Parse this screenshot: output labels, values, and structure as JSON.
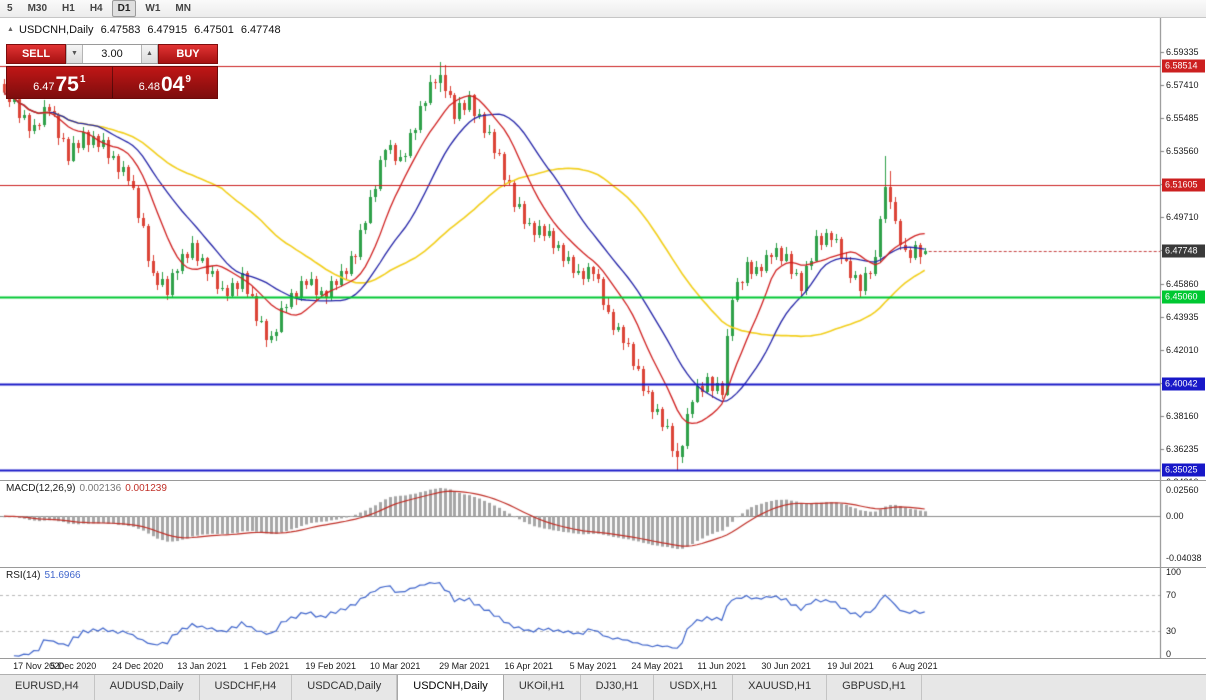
{
  "toolbar": {
    "timeframes": [
      {
        "label": "5",
        "active": false
      },
      {
        "label": "M30",
        "active": false
      },
      {
        "label": "H1",
        "active": false
      },
      {
        "label": "H4",
        "active": false
      },
      {
        "label": "D1",
        "active": true
      },
      {
        "label": "W1",
        "active": false
      },
      {
        "label": "MN",
        "active": false
      }
    ]
  },
  "header": {
    "toggle_icon": "▲",
    "symbol": "USDCNH,Daily",
    "open": "6.47583",
    "high": "6.47915",
    "low": "6.47501",
    "close": "6.47748"
  },
  "one_click": {
    "sell_label": "SELL",
    "buy_label": "BUY",
    "volume": "3.00",
    "down_icon": "▼",
    "up_icon": "▲",
    "sell_price": {
      "prefix": "6.47",
      "big": "75",
      "sup": "1"
    },
    "buy_price": {
      "prefix": "6.48",
      "big": "04",
      "sup": "9"
    }
  },
  "chart_data": {
    "type": "candlestick",
    "symbol": "USDCNH",
    "period": "Daily",
    "price_axis": {
      "min": 6.3444,
      "max": 6.613,
      "ticks": [
        "6.59335",
        "6.57410",
        "6.55485",
        "6.53560",
        "6.51635",
        "6.49710",
        "6.47785",
        "6.45860",
        "6.43935",
        "6.42010",
        "6.40085",
        "6.38160",
        "6.36235",
        "6.34310"
      ]
    },
    "levels": [
      {
        "price": 6.58514,
        "label": "6.58514",
        "color": "#cc2020",
        "lw": 1
      },
      {
        "price": 6.51605,
        "label": "6.51605",
        "color": "#cc2020",
        "lw": 1
      },
      {
        "price": 6.4506,
        "label": "6.45060",
        "color": "#00c832",
        "lw": 2
      },
      {
        "price": 6.40042,
        "label": "6.40042",
        "color": "#1818c8",
        "lw": 2
      },
      {
        "price": 6.35025,
        "label": "6.35025",
        "color": "#1818c8",
        "lw": 2
      }
    ],
    "current_price": {
      "value": 6.47748,
      "label": "6.47748",
      "badge_color": "#3a3a3a"
    },
    "colors": {
      "up": "#2fa14a",
      "down": "#dc4437",
      "ma_fast": "#d02020",
      "ma_mid": "#2424a8",
      "ma_slow": "#f2cf1d",
      "bid_line": "#c84040",
      "axis_border": "#808080",
      "macd_hist": "#a6a6a6",
      "macd_signal": "#c03028",
      "rsi_line": "#4066cc"
    },
    "time_labels": [
      {
        "i": 7,
        "label": "17 Nov 2020"
      },
      {
        "i": 14,
        "label": "5 Dec 2020"
      },
      {
        "i": 27,
        "label": "24 Dec 2020"
      },
      {
        "i": 40,
        "label": "13 Jan 2021"
      },
      {
        "i": 53,
        "label": "1 Feb 2021"
      },
      {
        "i": 66,
        "label": "19 Feb 2021"
      },
      {
        "i": 79,
        "label": "10 Mar 2021"
      },
      {
        "i": 93,
        "label": "29 Mar 2021"
      },
      {
        "i": 106,
        "label": "16 Apr 2021"
      },
      {
        "i": 119,
        "label": "5 May 2021"
      },
      {
        "i": 132,
        "label": "24 May 2021"
      },
      {
        "i": 145,
        "label": "11 Jun 2021"
      },
      {
        "i": 158,
        "label": "30 Jun 2021"
      },
      {
        "i": 171,
        "label": "19 Jul 2021"
      },
      {
        "i": 184,
        "label": "6 Aug 2021"
      }
    ],
    "candles": [
      [
        6.5745,
        6.5775,
        6.5682,
        6.57
      ],
      [
        6.57,
        6.5712,
        6.5614,
        6.564
      ],
      [
        6.564,
        6.57,
        6.563,
        6.566
      ],
      [
        6.566,
        6.5678,
        6.552,
        6.555
      ],
      [
        6.555,
        6.5593,
        6.5538,
        6.5567
      ],
      [
        6.5567,
        6.5577,
        6.5433,
        6.5473
      ],
      [
        6.5473,
        6.554,
        6.5455,
        6.551
      ],
      [
        6.551,
        6.5522,
        6.5481,
        6.5507
      ],
      [
        6.5507,
        6.5653,
        6.5497,
        6.5613
      ],
      [
        6.5613,
        6.5631,
        6.556,
        6.559
      ],
      [
        6.559,
        6.5616,
        6.5553,
        6.5565
      ],
      [
        6.5565,
        6.5575,
        6.539,
        6.543
      ],
      [
        6.543,
        6.546,
        6.5407,
        6.5425
      ],
      [
        6.5425,
        6.5437,
        6.5274,
        6.53
      ],
      [
        6.53,
        6.5443,
        6.529,
        6.5403
      ],
      [
        6.5403,
        6.5421,
        6.5347,
        6.5377
      ],
      [
        6.5377,
        6.5496,
        6.5365,
        6.547
      ],
      [
        6.547,
        6.548,
        6.5353,
        6.5393
      ],
      [
        6.5393,
        6.5475,
        6.5375,
        6.5445
      ],
      [
        6.5445,
        6.5457,
        6.5352,
        6.5378
      ],
      [
        6.5378,
        6.546,
        6.5368,
        6.542
      ],
      [
        6.542,
        6.5438,
        6.5284,
        6.5314
      ],
      [
        6.5314,
        6.5354,
        6.5302,
        6.5328
      ],
      [
        6.5328,
        6.5338,
        6.5192,
        6.5232
      ],
      [
        6.5232,
        6.5296,
        6.5214,
        6.5266
      ],
      [
        6.5266,
        6.5278,
        6.5154,
        6.518
      ],
      [
        6.518,
        6.522,
        6.513,
        6.514
      ],
      [
        6.514,
        6.5158,
        6.494,
        6.497
      ],
      [
        6.497,
        6.4996,
        6.4908,
        6.492
      ],
      [
        6.492,
        6.493,
        6.468,
        6.472
      ],
      [
        6.472,
        6.475,
        6.4632,
        6.465
      ],
      [
        6.465,
        6.4662,
        6.4551,
        6.4577
      ],
      [
        6.4577,
        6.4653,
        6.4567,
        6.4613
      ],
      [
        6.4613,
        6.4631,
        6.449,
        6.452
      ],
      [
        6.452,
        6.4671,
        6.4508,
        6.4645
      ],
      [
        6.4645,
        6.467,
        6.4605,
        6.466
      ],
      [
        6.466,
        6.4787,
        6.4642,
        6.4757
      ],
      [
        6.4757,
        6.4769,
        6.4707,
        6.4733
      ],
      [
        6.4733,
        6.486,
        6.4723,
        6.482
      ],
      [
        6.482,
        6.4838,
        6.4687,
        6.4717
      ],
      [
        6.4717,
        6.4759,
        6.4705,
        6.4733
      ],
      [
        6.4733,
        6.4743,
        6.46,
        6.464
      ],
      [
        6.464,
        6.4687,
        6.4622,
        6.4657
      ],
      [
        6.4657,
        6.4669,
        6.4527,
        6.4553
      ],
      [
        6.4553,
        6.46,
        6.4543,
        6.456
      ],
      [
        6.456,
        6.4578,
        6.4485,
        6.4515
      ],
      [
        6.4515,
        6.4616,
        6.4503,
        6.459
      ],
      [
        6.459,
        6.46,
        6.4515,
        6.4555
      ],
      [
        6.4555,
        6.468,
        6.4537,
        6.465
      ],
      [
        6.465,
        6.4662,
        6.4501,
        6.4527
      ],
      [
        6.4527,
        6.4567,
        6.4503,
        6.4513
      ],
      [
        6.4513,
        6.4531,
        6.434,
        6.437
      ],
      [
        6.437,
        6.4396,
        6.4358,
        6.437
      ],
      [
        6.437,
        6.438,
        6.422,
        6.426
      ],
      [
        6.426,
        6.431,
        6.4242,
        6.428
      ],
      [
        6.428,
        6.4319,
        6.4254,
        6.4307
      ],
      [
        6.4307,
        6.4483,
        6.4297,
        6.4443
      ],
      [
        6.4443,
        6.4468,
        6.4413,
        6.445
      ],
      [
        6.445,
        6.4556,
        6.4438,
        6.453
      ],
      [
        6.453,
        6.454,
        6.446,
        6.45
      ],
      [
        6.45,
        6.463,
        6.4482,
        6.46
      ],
      [
        6.46,
        6.4612,
        6.4554,
        6.458
      ],
      [
        6.458,
        6.4653,
        6.457,
        6.4613
      ],
      [
        6.4613,
        6.4631,
        6.4487,
        6.4517
      ],
      [
        6.4517,
        6.4566,
        6.4505,
        6.454
      ],
      [
        6.454,
        6.455,
        6.4465,
        6.4505
      ],
      [
        6.4505,
        6.463,
        6.4487,
        6.46
      ],
      [
        6.46,
        6.4612,
        6.4549,
        6.4575
      ],
      [
        6.4575,
        6.47,
        6.4565,
        6.466
      ],
      [
        6.466,
        6.4678,
        6.4613,
        6.4643
      ],
      [
        6.4643,
        6.4773,
        6.4631,
        6.4747
      ],
      [
        6.4747,
        6.4757,
        6.47,
        6.474
      ],
      [
        6.474,
        6.493,
        6.4722,
        6.49
      ],
      [
        6.49,
        6.4952,
        6.4874,
        6.494
      ],
      [
        6.494,
        6.513,
        6.493,
        6.509
      ],
      [
        6.509,
        6.5155,
        6.506,
        6.5137
      ],
      [
        6.5137,
        6.5329,
        6.5125,
        6.5303
      ],
      [
        6.5303,
        6.537,
        6.5263,
        6.536
      ],
      [
        6.536,
        6.542,
        6.5342,
        6.539
      ],
      [
        6.539,
        6.5402,
        6.5274,
        6.53
      ],
      [
        6.53,
        6.536,
        6.529,
        6.532
      ],
      [
        6.532,
        6.5348,
        6.529,
        6.533
      ],
      [
        6.533,
        6.5486,
        6.5318,
        6.546
      ],
      [
        6.546,
        6.549,
        6.542,
        6.548
      ],
      [
        6.548,
        6.5647,
        6.5462,
        6.5617
      ],
      [
        6.5617,
        6.5645,
        6.5591,
        6.5633
      ],
      [
        6.5633,
        6.58,
        6.5623,
        6.576
      ],
      [
        6.576,
        6.5778,
        6.572,
        6.575
      ],
      [
        6.575,
        6.5875,
        6.57,
        6.58
      ],
      [
        6.58,
        6.5858,
        6.5667,
        6.5707
      ],
      [
        6.5707,
        6.5737,
        6.5665,
        6.5683
      ],
      [
        6.5683,
        6.5695,
        6.5514,
        6.554
      ],
      [
        6.554,
        6.5673,
        6.553,
        6.5633
      ],
      [
        6.5633,
        6.5651,
        6.5567,
        6.5597
      ],
      [
        6.5597,
        6.5706,
        6.5585,
        6.568
      ],
      [
        6.568,
        6.569,
        6.552,
        6.556
      ],
      [
        6.556,
        6.56,
        6.5542,
        6.557
      ],
      [
        6.557,
        6.5582,
        6.5434,
        6.546
      ],
      [
        6.546,
        6.5507,
        6.545,
        6.5467
      ],
      [
        6.5467,
        6.5485,
        6.5313,
        6.5343
      ],
      [
        6.5343,
        6.5369,
        6.5328,
        6.534
      ],
      [
        6.534,
        6.535,
        6.515,
        6.519
      ],
      [
        6.519,
        6.522,
        6.5152,
        6.517
      ],
      [
        6.517,
        6.5182,
        6.5004,
        6.503
      ],
      [
        6.503,
        6.5087,
        6.502,
        6.5047
      ],
      [
        6.5047,
        6.5065,
        6.4903,
        6.4933
      ],
      [
        6.4933,
        6.4966,
        6.4921,
        6.494
      ],
      [
        6.494,
        6.495,
        6.4827,
        6.4867
      ],
      [
        6.4867,
        6.4953,
        6.4849,
        6.4923
      ],
      [
        6.4923,
        6.4935,
        6.4834,
        6.486
      ],
      [
        6.486,
        6.493,
        6.485,
        6.489
      ],
      [
        6.489,
        6.4908,
        6.476,
        6.479
      ],
      [
        6.479,
        6.4836,
        6.4778,
        6.481
      ],
      [
        6.481,
        6.482,
        6.468,
        6.472
      ],
      [
        6.472,
        6.4773,
        6.4702,
        6.4743
      ],
      [
        6.4743,
        6.4755,
        6.4621,
        6.4647
      ],
      [
        6.4647,
        6.47,
        6.4637,
        6.466
      ],
      [
        6.466,
        6.4678,
        6.458,
        6.461
      ],
      [
        6.461,
        6.4706,
        6.4598,
        6.468
      ],
      [
        6.468,
        6.469,
        6.46,
        6.464
      ],
      [
        6.464,
        6.467,
        6.4592,
        6.461
      ],
      [
        6.461,
        6.4622,
        6.4434,
        6.446
      ],
      [
        6.446,
        6.45,
        6.441,
        6.442
      ],
      [
        6.442,
        6.4438,
        6.4287,
        6.4317
      ],
      [
        6.4317,
        6.4359,
        6.4305,
        6.4333
      ],
      [
        6.4333,
        6.4343,
        6.42,
        6.424
      ],
      [
        6.424,
        6.427,
        6.4215,
        6.4233
      ],
      [
        6.4233,
        6.4245,
        6.4081,
        6.4107
      ],
      [
        6.4107,
        6.4147,
        6.408,
        6.409
      ],
      [
        6.409,
        6.4108,
        6.3933,
        6.3963
      ],
      [
        6.3963,
        6.3989,
        6.3945,
        6.3957
      ],
      [
        6.3957,
        6.3967,
        6.38,
        6.384
      ],
      [
        6.384,
        6.3887,
        6.3822,
        6.3857
      ],
      [
        6.3857,
        6.3869,
        6.3727,
        6.3753
      ],
      [
        6.3753,
        6.38,
        6.3743,
        6.376
      ],
      [
        6.376,
        6.3778,
        6.358,
        6.361
      ],
      [
        6.361,
        6.366,
        6.3505,
        6.358
      ],
      [
        6.358,
        6.365,
        6.354,
        6.364
      ],
      [
        6.364,
        6.386,
        6.3622,
        6.383
      ],
      [
        6.383,
        6.3912,
        6.3804,
        6.39
      ],
      [
        6.39,
        6.4033,
        6.389,
        6.3993
      ],
      [
        6.3993,
        6.4011,
        6.3927,
        6.3957
      ],
      [
        6.3957,
        6.4066,
        6.3945,
        6.404
      ],
      [
        6.404,
        6.405,
        6.392,
        6.396
      ],
      [
        6.396,
        6.404,
        6.3942,
        6.401
      ],
      [
        6.401,
        6.4022,
        6.3914,
        6.394
      ],
      [
        6.394,
        6.432,
        6.393,
        6.428
      ],
      [
        6.428,
        6.4508,
        6.425,
        6.449
      ],
      [
        6.449,
        6.4619,
        6.4478,
        6.4593
      ],
      [
        6.4593,
        6.4603,
        6.4547,
        6.4587
      ],
      [
        6.4587,
        6.474,
        6.4569,
        6.471
      ],
      [
        6.471,
        6.4722,
        6.4614,
        6.464
      ],
      [
        6.464,
        6.472,
        6.463,
        6.468
      ],
      [
        6.468,
        6.4698,
        6.4627,
        6.4657
      ],
      [
        6.4657,
        6.4779,
        6.4645,
        6.4753
      ],
      [
        6.4753,
        6.4763,
        6.47,
        6.474
      ],
      [
        6.474,
        6.482,
        6.4722,
        6.479
      ],
      [
        6.479,
        6.4802,
        6.4694,
        6.472
      ],
      [
        6.472,
        6.48,
        6.471,
        6.476
      ],
      [
        6.476,
        6.4778,
        6.4613,
        6.4643
      ],
      [
        6.4643,
        6.4673,
        6.4631,
        6.4647
      ],
      [
        6.4647,
        6.4657,
        6.45,
        6.454
      ],
      [
        6.454,
        6.472,
        6.4522,
        6.469
      ],
      [
        6.469,
        6.4732,
        6.4664,
        6.472
      ],
      [
        6.472,
        6.49,
        6.471,
        6.486
      ],
      [
        6.486,
        6.4878,
        6.478,
        6.481
      ],
      [
        6.481,
        6.4906,
        6.4798,
        6.488
      ],
      [
        6.488,
        6.489,
        6.48,
        6.484
      ],
      [
        6.484,
        6.4873,
        6.4822,
        6.4843
      ],
      [
        6.4843,
        6.4855,
        6.4701,
        6.4727
      ],
      [
        6.4727,
        6.4767,
        6.471,
        6.472
      ],
      [
        6.472,
        6.4738,
        6.4587,
        6.4617
      ],
      [
        6.4617,
        6.4659,
        6.4605,
        6.4633
      ],
      [
        6.4633,
        6.4643,
        6.45,
        6.454
      ],
      [
        6.454,
        6.468,
        6.4522,
        6.465
      ],
      [
        6.465,
        6.4662,
        6.4614,
        6.464
      ],
      [
        6.464,
        6.478,
        6.463,
        6.474
      ],
      [
        6.474,
        6.4978,
        6.471,
        6.496
      ],
      [
        6.496,
        6.533,
        6.494,
        6.515
      ],
      [
        6.515,
        6.524,
        6.502,
        6.506
      ],
      [
        6.506,
        6.509,
        6.4932,
        6.495
      ],
      [
        6.495,
        6.4962,
        6.4784,
        6.481
      ],
      [
        6.481,
        6.485,
        6.477,
        6.478
      ],
      [
        6.478,
        6.4798,
        6.4705,
        6.4735
      ],
      [
        6.4735,
        6.4836,
        6.4723,
        6.481
      ],
      [
        6.481,
        6.482,
        6.47,
        6.474
      ],
      [
        6.47583,
        6.47915,
        6.47501,
        6.47748
      ]
    ]
  },
  "macd": {
    "label": "MACD(12,26,9)",
    "main_value": "0.002136",
    "signal_value": "0.001239",
    "ticks": [
      {
        "value": 0.0256,
        "label": "0.02560"
      },
      {
        "value": 0,
        "label": "0.00"
      },
      {
        "value": -0.04038,
        "label": "-0.04038"
      }
    ]
  },
  "rsi": {
    "label": "RSI(14)",
    "value": "51.6966",
    "levels": [
      70,
      30
    ],
    "ticks": [
      {
        "value": 100,
        "label": "100"
      },
      {
        "value": 70,
        "label": "70"
      },
      {
        "value": 30,
        "label": "30"
      },
      {
        "value": 0,
        "label": "0"
      }
    ]
  },
  "tabs": [
    {
      "label": "EURUSD,H4",
      "active": false
    },
    {
      "label": "AUDUSD,Daily",
      "active": false
    },
    {
      "label": "USDCHF,H4",
      "active": false
    },
    {
      "label": "USDCAD,Daily",
      "active": false
    },
    {
      "label": "USDCNH,Daily",
      "active": true
    },
    {
      "label": "UKOil,H1",
      "active": false
    },
    {
      "label": "DJ30,H1",
      "active": false
    },
    {
      "label": "USDX,H1",
      "active": false
    },
    {
      "label": "XAUUSD,H1",
      "active": false
    },
    {
      "label": "GBPUSD,H1",
      "active": false
    }
  ]
}
